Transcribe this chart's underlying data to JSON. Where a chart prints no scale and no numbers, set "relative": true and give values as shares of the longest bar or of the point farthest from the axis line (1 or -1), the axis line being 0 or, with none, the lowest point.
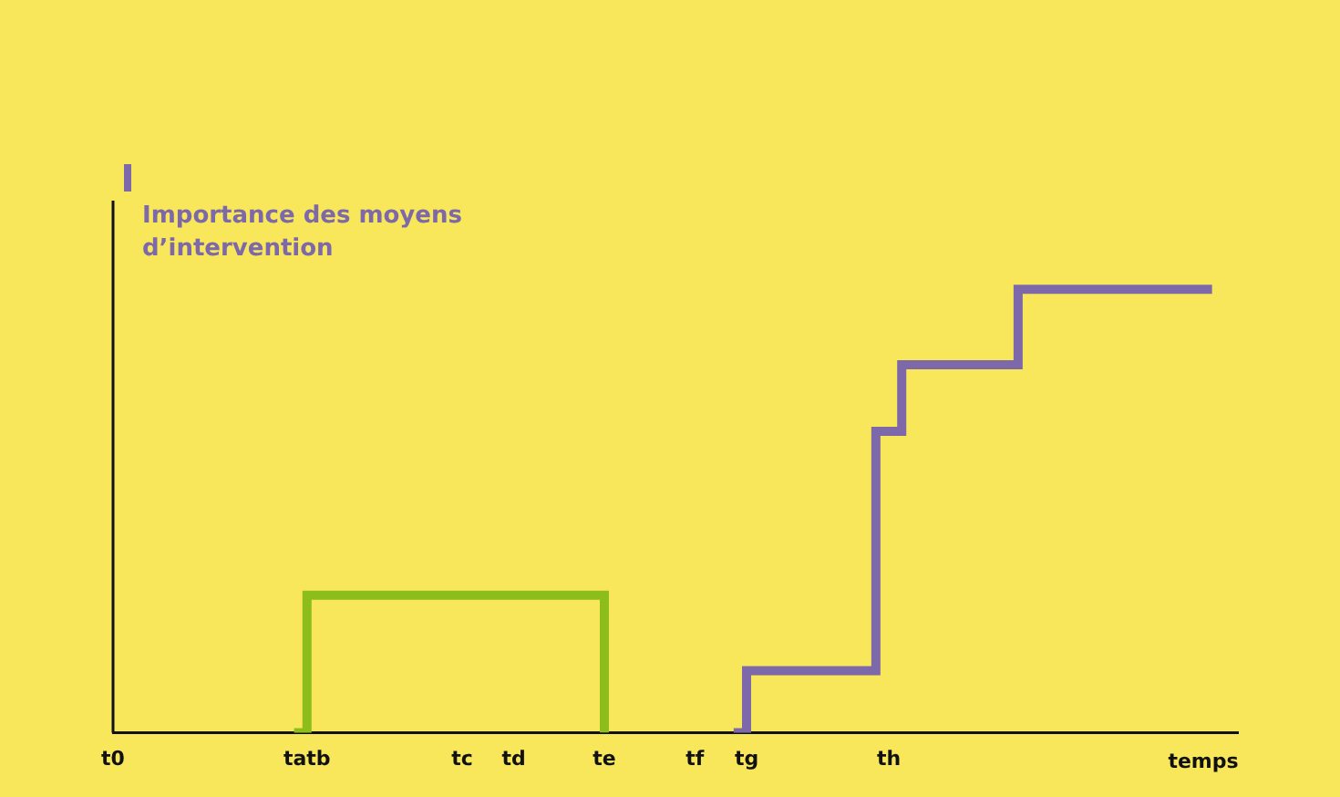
{
  "chart_data": {
    "type": "step",
    "relative": true,
    "ylabel": "Importance des moyens d’intervention",
    "xlabel": "temps",
    "categories": [
      "t0",
      null,
      null,
      null,
      null,
      null,
      null,
      null,
      null,
      null,
      null,
      null,
      null,
      null,
      null,
      "tatb",
      null,
      null,
      null,
      null,
      null,
      null,
      null,
      null,
      null,
      null,
      null,
      "tc",
      null,
      null,
      null,
      "td",
      null,
      null,
      null,
      null,
      null,
      null,
      "te",
      null,
      null,
      null,
      null,
      null,
      null,
      "tf",
      null,
      null,
      null,
      "tg",
      null,
      null,
      null,
      null,
      null,
      null,
      null,
      null,
      null,
      null,
      "th",
      null,
      null,
      null,
      null,
      null,
      null,
      null,
      null,
      null,
      null,
      null,
      null,
      null,
      null,
      null,
      null,
      null,
      null,
      null,
      null,
      null,
      null,
      null,
      null,
      null,
      null,
      null
    ],
    "series": [
      {
        "color": "#8dbd1a",
        "values": [
          null,
          null,
          null,
          null,
          null,
          null,
          null,
          null,
          null,
          null,
          null,
          null,
          null,
          null,
          0,
          0.31,
          0.31,
          0.31,
          0.31,
          0.31,
          0.31,
          0.31,
          0.31,
          0.31,
          0.31,
          0.31,
          0.31,
          0.31,
          0.31,
          0.31,
          0.31,
          0.31,
          0.31,
          0.31,
          0.31,
          0.31,
          0.31,
          0.31,
          0,
          null,
          null,
          null,
          null,
          null,
          null,
          null,
          null,
          null,
          null,
          null,
          null,
          null,
          null,
          null,
          null,
          null,
          null,
          null,
          null,
          null,
          null,
          null,
          null,
          null,
          null,
          null,
          null,
          null,
          null,
          null,
          null,
          null,
          null,
          null,
          null,
          null,
          null,
          null,
          null,
          null,
          null,
          null,
          null,
          null,
          null,
          null,
          null,
          null
        ]
      },
      {
        "color": "#7d68aa",
        "values": [
          null,
          null,
          null,
          null,
          null,
          null,
          null,
          null,
          null,
          null,
          null,
          null,
          null,
          null,
          null,
          null,
          null,
          null,
          null,
          null,
          null,
          null,
          null,
          null,
          null,
          null,
          null,
          null,
          null,
          null,
          null,
          null,
          null,
          null,
          null,
          null,
          null,
          null,
          null,
          null,
          null,
          null,
          null,
          null,
          null,
          null,
          null,
          null,
          0,
          0.14,
          0.14,
          0.14,
          0.14,
          0.14,
          0.14,
          0.14,
          0.14,
          0.14,
          0.14,
          0.68,
          0.68,
          0.83,
          0.83,
          0.83,
          0.83,
          0.83,
          0.83,
          0.83,
          0.83,
          0.83,
          1,
          1,
          1,
          1,
          1,
          1,
          1,
          1,
          1,
          1,
          1,
          1,
          1,
          1,
          1,
          1,
          null,
          null
        ]
      }
    ],
    "grid": false,
    "legend": false
  }
}
